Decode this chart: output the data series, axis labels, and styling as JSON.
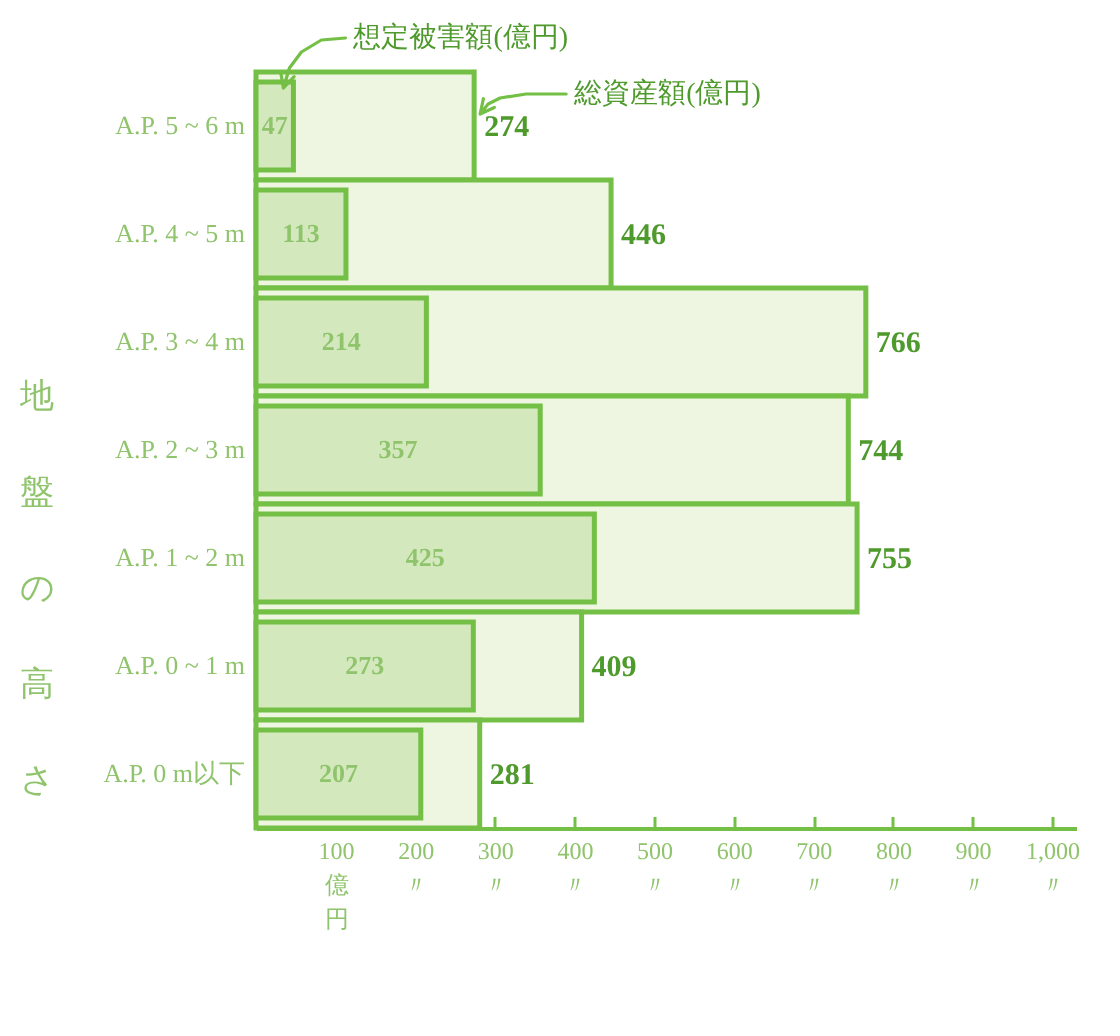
{
  "chart_data": {
    "type": "bar",
    "orientation": "horizontal",
    "ylabel": "地盤の高さ",
    "categories": [
      "A.P. 5 ~ 6 m",
      "A.P. 4 ~ 5 m",
      "A.P. 3 ~ 4 m",
      "A.P. 2 ~ 3 m",
      "A.P. 1 ~ 2 m",
      "A.P. 0 ~ 1 m",
      "A.P. 0 m以下"
    ],
    "series": [
      {
        "name": "総資産額(億円)",
        "color": "#eef6e2",
        "values": [
          274,
          446,
          766,
          744,
          755,
          409,
          281
        ]
      },
      {
        "name": "想定被害額(億円)",
        "color": "#d3e9bd",
        "values": [
          47,
          113,
          214,
          357,
          425,
          273,
          207
        ]
      }
    ],
    "xlim": [
      0,
      1030
    ],
    "xticks": [
      {
        "value": 100,
        "label": "100\n億円"
      },
      {
        "value": 200,
        "label": "200\n〃"
      },
      {
        "value": 300,
        "label": "300\n〃"
      },
      {
        "value": 400,
        "label": "400\n〃"
      },
      {
        "value": 500,
        "label": "500\n〃"
      },
      {
        "value": 600,
        "label": "600\n〃"
      },
      {
        "value": 700,
        "label": "700\n〃"
      },
      {
        "value": 800,
        "label": "800\n〃"
      },
      {
        "value": 900,
        "label": "900\n〃"
      },
      {
        "value": 1000,
        "label": "1,000\n〃"
      }
    ],
    "data_labels": true
  }
}
